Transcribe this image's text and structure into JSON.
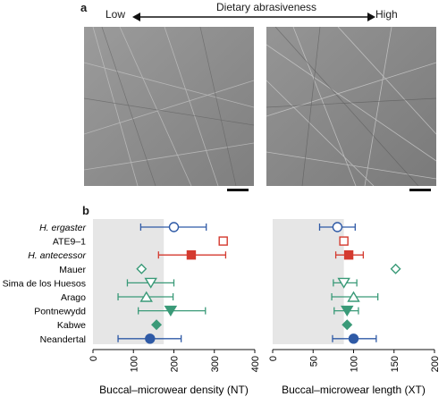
{
  "panel_a": {
    "letter": "a",
    "low_label": "Low",
    "scale_title": "Dietary abrasiveness",
    "high_label": "High"
  },
  "panel_b": {
    "letter": "b"
  },
  "chart_data": [
    {
      "type": "scatter",
      "title": "",
      "xlabel": "Buccal–microwear density (NT)",
      "xlim": [
        0,
        400
      ],
      "xticks": [
        0,
        100,
        200,
        300,
        400
      ],
      "shaded_region": [
        0,
        175
      ],
      "categories": [
        "H. ergaster",
        "ATE9–1",
        "H. antecessor",
        "Mauer",
        "Sima de los Huesos",
        "Arago",
        "Pontnewydd",
        "Kabwe",
        "Neandertal"
      ],
      "italic_categories": [
        "H. ergaster",
        "H. antecessor"
      ],
      "points": [
        {
          "label": "H. ergaster",
          "value": 200,
          "low": 118,
          "high": 280,
          "marker": "circle-open",
          "color": "#2f5aa6"
        },
        {
          "label": "ATE9–1",
          "value": 322,
          "low": null,
          "high": null,
          "marker": "square-open",
          "color": "#d43a2f"
        },
        {
          "label": "H. antecessor",
          "value": 243,
          "low": 162,
          "high": 328,
          "marker": "square-filled",
          "color": "#d43a2f"
        },
        {
          "label": "Mauer",
          "value": 120,
          "low": null,
          "high": null,
          "marker": "diamond-open",
          "color": "#3a9a78"
        },
        {
          "label": "Sima de los Huesos",
          "value": 143,
          "low": 85,
          "high": 200,
          "marker": "triangle-down-open",
          "color": "#3a9a78"
        },
        {
          "label": "Arago",
          "value": 132,
          "low": 62,
          "high": 198,
          "marker": "triangle-up-open",
          "color": "#3a9a78"
        },
        {
          "label": "Pontnewydd",
          "value": 192,
          "low": 112,
          "high": 278,
          "marker": "triangle-down-filled",
          "color": "#3a9a78"
        },
        {
          "label": "Kabwe",
          "value": 157,
          "low": null,
          "high": null,
          "marker": "diamond-filled",
          "color": "#3a9a78"
        },
        {
          "label": "Neandertal",
          "value": 141,
          "low": 62,
          "high": 218,
          "marker": "circle-filled",
          "color": "#2f5aa6"
        }
      ]
    },
    {
      "type": "scatter",
      "title": "",
      "xlabel": "Buccal–microwear length (XT)",
      "xlim": [
        0,
        200
      ],
      "xticks": [
        0,
        50,
        100,
        150,
        200
      ],
      "shaded_region": [
        0,
        88
      ],
      "categories": [
        "H. ergaster",
        "ATE9–1",
        "H. antecessor",
        "Mauer",
        "Sima de los Huesos",
        "Arago",
        "Pontnewydd",
        "Kabwe",
        "Neandertal"
      ],
      "points": [
        {
          "label": "H. ergaster",
          "value": 80,
          "low": 58,
          "high": 102,
          "marker": "circle-open",
          "color": "#2f5aa6"
        },
        {
          "label": "ATE9–1",
          "value": 88,
          "low": null,
          "high": null,
          "marker": "square-open",
          "color": "#d43a2f"
        },
        {
          "label": "H. antecessor",
          "value": 94,
          "low": 78,
          "high": 112,
          "marker": "square-filled",
          "color": "#d43a2f"
        },
        {
          "label": "Mauer",
          "value": 152,
          "low": null,
          "high": null,
          "marker": "diamond-open",
          "color": "#3a9a78"
        },
        {
          "label": "Sima de los Huesos",
          "value": 88,
          "low": 75,
          "high": 104,
          "marker": "triangle-down-open",
          "color": "#3a9a78"
        },
        {
          "label": "Arago",
          "value": 100,
          "low": 73,
          "high": 130,
          "marker": "triangle-up-open",
          "color": "#3a9a78"
        },
        {
          "label": "Pontnewydd",
          "value": 92,
          "low": 76,
          "high": 106,
          "marker": "triangle-down-filled",
          "color": "#3a9a78"
        },
        {
          "label": "Kabwe",
          "value": 92,
          "low": null,
          "high": null,
          "marker": "diamond-filled",
          "color": "#3a9a78"
        },
        {
          "label": "Neandertal",
          "value": 100,
          "low": 74,
          "high": 128,
          "marker": "circle-filled",
          "color": "#2f5aa6"
        }
      ]
    }
  ]
}
